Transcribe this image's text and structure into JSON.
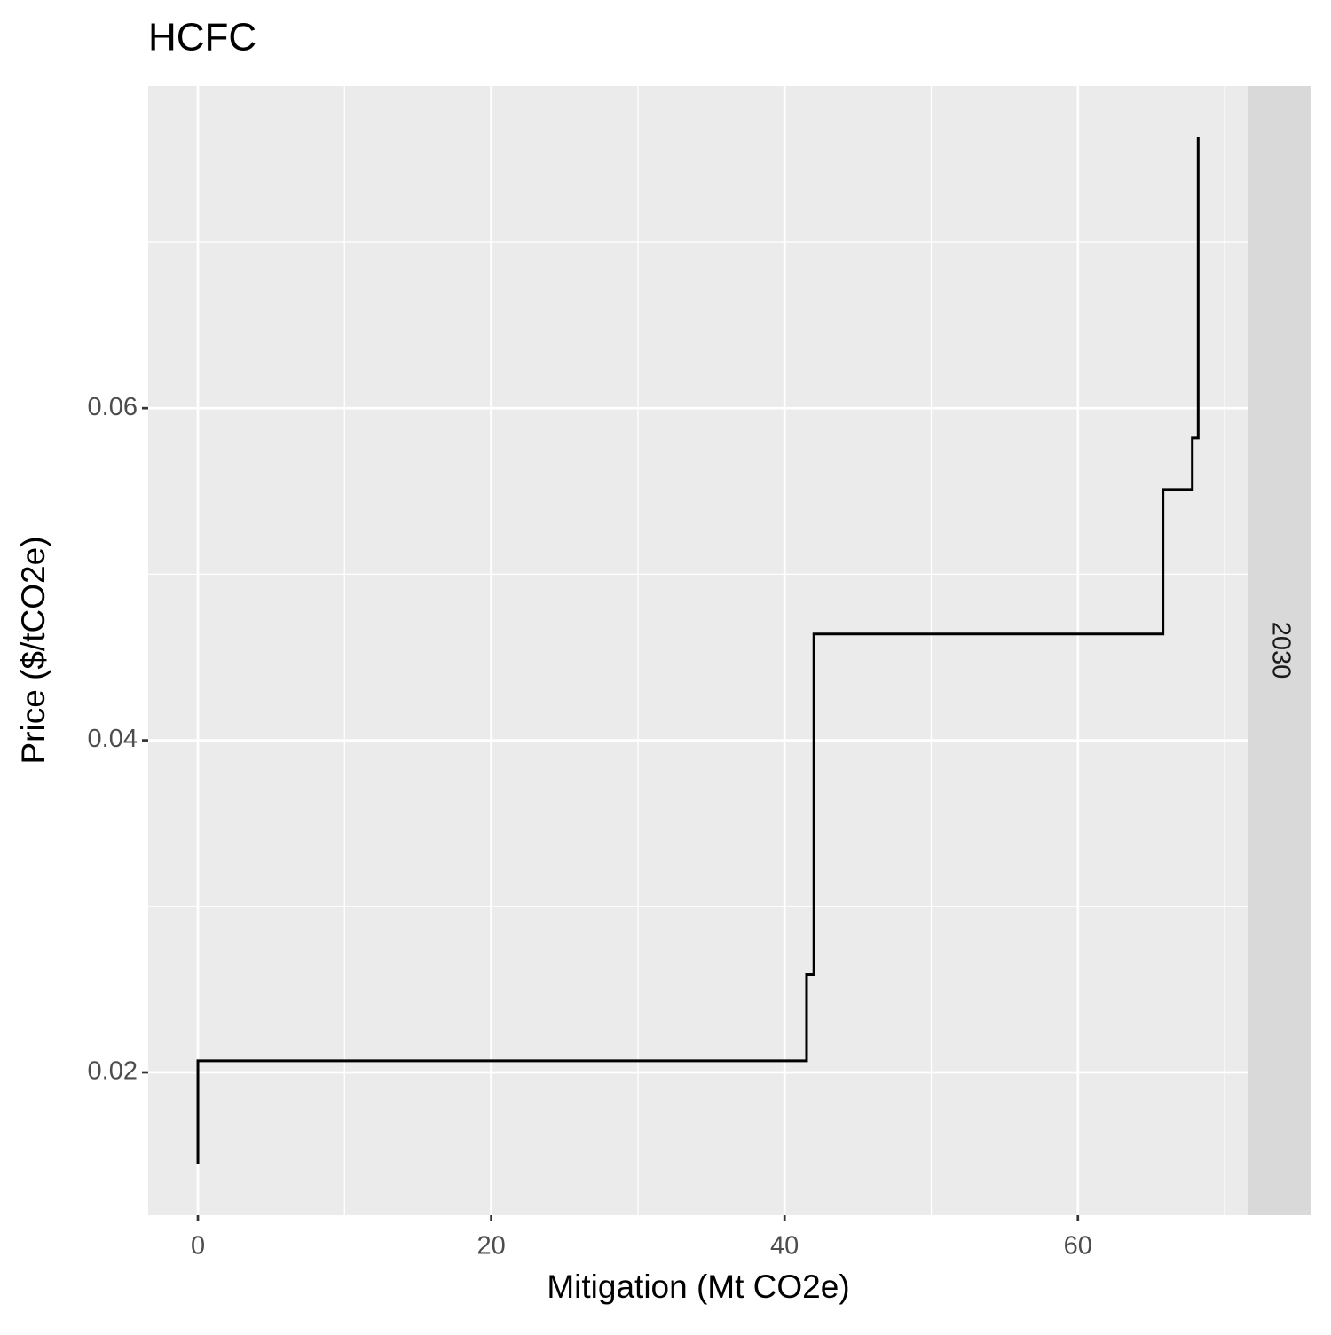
{
  "chart_data": {
    "type": "line",
    "title": "HCFC",
    "x_label": "Mitigation (Mt CO2e)",
    "y_label": "Price ($/tCO2e)",
    "facet_label": "2030",
    "series": [
      {
        "color": "#000000",
        "x": [
          0,
          0,
          41.5,
          41.5,
          42,
          42,
          65.8,
          65.8,
          67.8,
          67.8,
          68.2,
          68.2
        ],
        "values": [
          0.0145,
          0.0207,
          0.0207,
          0.0259,
          0.0259,
          0.0464,
          0.0464,
          0.0551,
          0.0551,
          0.0582,
          0.0582,
          0.0763
        ]
      }
    ],
    "xlim": [
      -3.39,
      71.63
    ],
    "ylim": [
      0.0114,
      0.0794
    ],
    "xticks": [
      0,
      20,
      40,
      60
    ],
    "yticks": [
      0.02,
      0.04,
      0.06
    ],
    "xminorticks": [
      10,
      30,
      50,
      70
    ],
    "yminorticks": [
      0.03,
      0.05,
      0.07
    ],
    "grid": true
  }
}
